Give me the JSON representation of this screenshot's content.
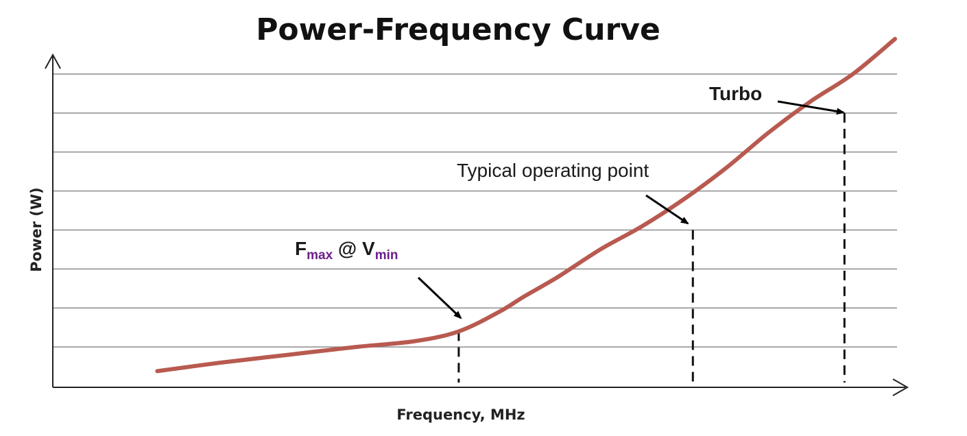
{
  "chart_data": {
    "type": "line",
    "title": "Power-Frequency Curve",
    "xlabel": "Frequency, MHz",
    "ylabel": "Power (W)",
    "xlim": [
      0,
      1000
    ],
    "ylim": [
      0,
      8
    ],
    "grid": {
      "horizontal": true,
      "vertical": false,
      "y_lines": [
        1,
        2,
        3,
        4,
        5,
        6,
        7,
        8
      ]
    },
    "series": [
      {
        "name": "",
        "color": "#b85a50",
        "x": [
          124,
          200,
          280,
          360,
          430,
          482,
          530,
          560,
          600,
          650,
          700,
          750,
          800,
          850,
          900,
          950,
          1000
        ],
        "y": [
          0.38,
          0.6,
          0.8,
          1.0,
          1.15,
          1.4,
          1.9,
          2.3,
          2.8,
          3.5,
          4.1,
          4.8,
          5.6,
          6.5,
          7.3,
          8.0,
          8.9
        ]
      }
    ],
    "annotations": [
      {
        "id": "fmax",
        "parts": [
          {
            "text": "F",
            "role": "base"
          },
          {
            "text": "max",
            "role": "sub"
          },
          {
            "text": " @ V",
            "role": "base"
          },
          {
            "text": "min",
            "role": "sub"
          }
        ],
        "point": {
          "x": 482,
          "y": 1.4
        },
        "sub_color": "#6b1f8a"
      },
      {
        "id": "typical",
        "text": "Typical operating point",
        "point": {
          "x": 760,
          "y": 4.0
        }
      },
      {
        "id": "turbo",
        "text": "Turbo",
        "point": {
          "x": 940,
          "y": 7.0
        }
      }
    ]
  }
}
